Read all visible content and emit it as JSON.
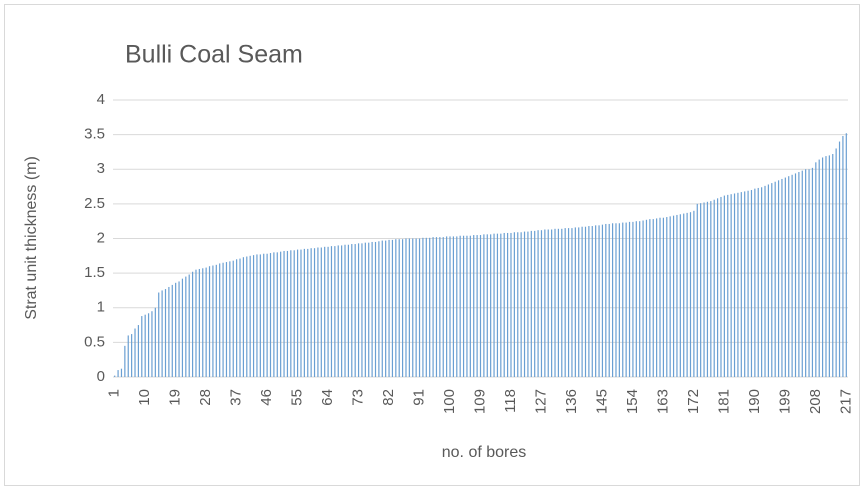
{
  "chart_data": {
    "type": "bar",
    "title": "Bulli Coal Seam",
    "y_label": "Strat unit thickness (m)",
    "x_label": "no. of bores",
    "color": "#6a9fd2",
    "grid": true,
    "ylim": [
      0,
      4
    ],
    "yticks": [
      0,
      0.5,
      1,
      1.5,
      2,
      2.5,
      3,
      3.5,
      4
    ],
    "categories": [
      "1",
      null,
      null,
      null,
      null,
      null,
      null,
      null,
      null,
      "10",
      null,
      null,
      null,
      null,
      null,
      null,
      null,
      null,
      "19",
      null,
      null,
      null,
      null,
      null,
      null,
      null,
      null,
      "28",
      null,
      null,
      null,
      null,
      null,
      null,
      null,
      null,
      "37",
      null,
      null,
      null,
      null,
      null,
      null,
      null,
      null,
      "46",
      null,
      null,
      null,
      null,
      null,
      null,
      null,
      null,
      "55",
      null,
      null,
      null,
      null,
      null,
      null,
      null,
      null,
      "64",
      null,
      null,
      null,
      null,
      null,
      null,
      null,
      null,
      "73",
      null,
      null,
      null,
      null,
      null,
      null,
      null,
      null,
      "82",
      null,
      null,
      null,
      null,
      null,
      null,
      null,
      null,
      "91",
      null,
      null,
      null,
      null,
      null,
      null,
      null,
      null,
      "100",
      null,
      null,
      null,
      null,
      null,
      null,
      null,
      null,
      "109",
      null,
      null,
      null,
      null,
      null,
      null,
      null,
      null,
      "118",
      null,
      null,
      null,
      null,
      null,
      null,
      null,
      null,
      "127",
      null,
      null,
      null,
      null,
      null,
      null,
      null,
      null,
      "136",
      null,
      null,
      null,
      null,
      null,
      null,
      null,
      null,
      "145",
      null,
      null,
      null,
      null,
      null,
      null,
      null,
      null,
      "154",
      null,
      null,
      null,
      null,
      null,
      null,
      null,
      null,
      "163",
      null,
      null,
      null,
      null,
      null,
      null,
      null,
      null,
      "172",
      null,
      null,
      null,
      null,
      null,
      null,
      null,
      null,
      "181",
      null,
      null,
      null,
      null,
      null,
      null,
      null,
      null,
      "190",
      null,
      null,
      null,
      null,
      null,
      null,
      null,
      null,
      "199",
      null,
      null,
      null,
      null,
      null,
      null,
      null,
      null,
      "208",
      null,
      null,
      null,
      null,
      null,
      null,
      null,
      null,
      "217"
    ],
    "values": [
      0.02,
      0.1,
      0.12,
      0.45,
      0.6,
      0.62,
      0.7,
      0.75,
      0.88,
      0.9,
      0.92,
      0.95,
      1.0,
      1.22,
      1.25,
      1.27,
      1.3,
      1.33,
      1.36,
      1.38,
      1.42,
      1.45,
      1.48,
      1.52,
      1.55,
      1.56,
      1.57,
      1.58,
      1.6,
      1.61,
      1.62,
      1.64,
      1.65,
      1.66,
      1.67,
      1.68,
      1.7,
      1.71,
      1.73,
      1.74,
      1.75,
      1.76,
      1.77,
      1.77,
      1.78,
      1.78,
      1.79,
      1.8,
      1.8,
      1.81,
      1.82,
      1.82,
      1.83,
      1.83,
      1.84,
      1.84,
      1.85,
      1.85,
      1.86,
      1.86,
      1.87,
      1.87,
      1.88,
      1.88,
      1.89,
      1.89,
      1.9,
      1.9,
      1.91,
      1.91,
      1.92,
      1.92,
      1.93,
      1.93,
      1.94,
      1.94,
      1.95,
      1.95,
      1.96,
      1.97,
      1.97,
      1.98,
      1.98,
      1.99,
      1.99,
      1.99,
      2.0,
      2.0,
      2.0,
      2.0,
      2.0,
      2.01,
      2.01,
      2.01,
      2.02,
      2.02,
      2.02,
      2.02,
      2.03,
      2.03,
      2.03,
      2.03,
      2.04,
      2.04,
      2.04,
      2.04,
      2.05,
      2.05,
      2.05,
      2.06,
      2.06,
      2.06,
      2.07,
      2.07,
      2.07,
      2.08,
      2.08,
      2.08,
      2.09,
      2.09,
      2.09,
      2.1,
      2.1,
      2.11,
      2.11,
      2.12,
      2.12,
      2.13,
      2.13,
      2.13,
      2.14,
      2.14,
      2.14,
      2.15,
      2.15,
      2.15,
      2.16,
      2.16,
      2.17,
      2.17,
      2.18,
      2.18,
      2.19,
      2.19,
      2.2,
      2.21,
      2.21,
      2.22,
      2.22,
      2.22,
      2.23,
      2.23,
      2.24,
      2.24,
      2.25,
      2.25,
      2.26,
      2.27,
      2.28,
      2.28,
      2.29,
      2.3,
      2.3,
      2.31,
      2.32,
      2.33,
      2.34,
      2.35,
      2.36,
      2.37,
      2.38,
      2.4,
      2.5,
      2.51,
      2.52,
      2.53,
      2.54,
      2.56,
      2.58,
      2.6,
      2.62,
      2.63,
      2.64,
      2.65,
      2.66,
      2.67,
      2.68,
      2.69,
      2.7,
      2.72,
      2.73,
      2.74,
      2.76,
      2.78,
      2.8,
      2.82,
      2.84,
      2.86,
      2.88,
      2.9,
      2.92,
      2.94,
      2.96,
      2.98,
      3.0,
      3.0,
      3.02,
      3.1,
      3.14,
      3.17,
      3.19,
      3.2,
      3.22,
      3.3,
      3.4,
      3.48,
      3.52
    ]
  }
}
